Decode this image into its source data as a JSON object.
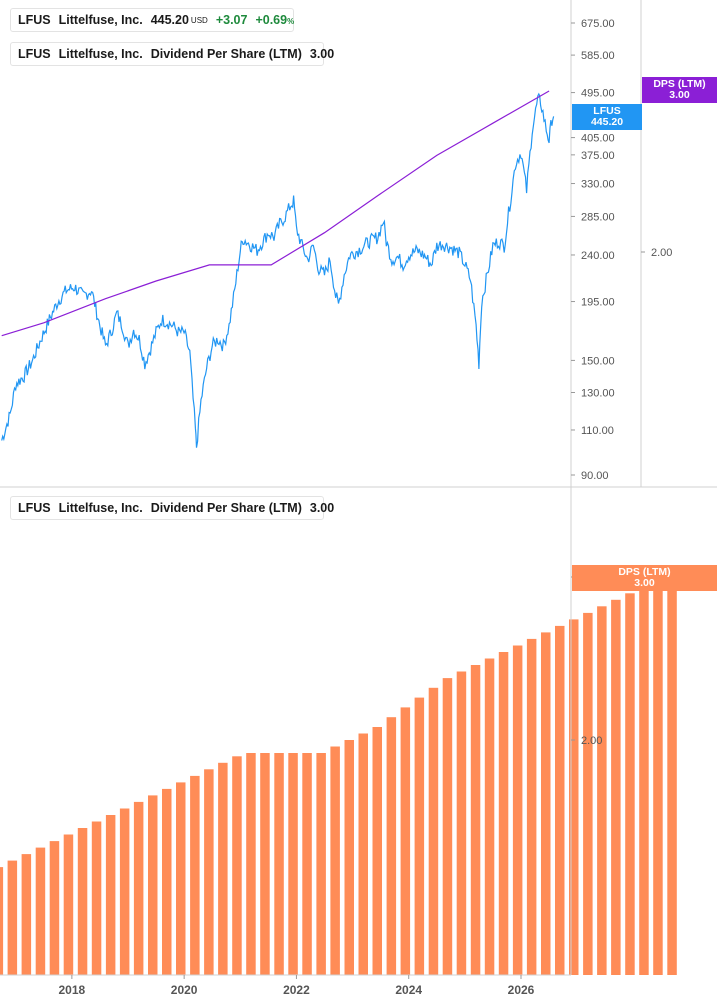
{
  "legend_price": {
    "ticker": "LFUS",
    "name": "Littelfuse, Inc.",
    "price": "445.20",
    "currency": "USD",
    "change": "+3.07",
    "change_pct": "+0.69",
    "pct_sign": "%",
    "color": "#2196f3"
  },
  "legend_dps_top": {
    "ticker": "LFUS",
    "name": "Littelfuse, Inc.",
    "metric": "Dividend Per Share (LTM)",
    "value": "3.00",
    "color": "#8b1fd6"
  },
  "legend_dps_bottom": {
    "ticker": "LFUS",
    "name": "Littelfuse, Inc.",
    "metric": "Dividend Per Share (LTM)",
    "value": "3.00",
    "color": "#ff8c57"
  },
  "tags": {
    "price_tag": {
      "label": "LFUS",
      "value": "445.20"
    },
    "dps_top_tag": {
      "label": "DPS (LTM)",
      "value": "3.00"
    },
    "dps_bottom_tag": {
      "label": "DPS (LTM)",
      "value": "3.00"
    }
  },
  "chart_data": [
    {
      "type": "line",
      "scale": "log",
      "y_ticks": [
        "675.00",
        "585.00",
        "495.00",
        "405.00",
        "375.00",
        "330.00",
        "285.00",
        "240.00",
        "195.00",
        "150.00",
        "130.00",
        "110.00",
        "90.00"
      ],
      "y2_ticks": [
        "2.00"
      ],
      "series": [
        {
          "name": "LFUS",
          "color": "#2196f3",
          "points": [
            [
              2016.75,
              105
            ],
            [
              2016.9,
              118
            ],
            [
              2017.0,
              135
            ],
            [
              2017.15,
              140
            ],
            [
              2017.3,
              150
            ],
            [
              2017.45,
              165
            ],
            [
              2017.6,
              180
            ],
            [
              2017.75,
              195
            ],
            [
              2017.9,
              205
            ],
            [
              2018.05,
              208
            ],
            [
              2018.2,
              200
            ],
            [
              2018.35,
              205
            ],
            [
              2018.5,
              175
            ],
            [
              2018.6,
              160
            ],
            [
              2018.7,
              170
            ],
            [
              2018.8,
              185
            ],
            [
              2018.9,
              175
            ],
            [
              2019.0,
              160
            ],
            [
              2019.1,
              172
            ],
            [
              2019.2,
              165
            ],
            [
              2019.3,
              148
            ],
            [
              2019.4,
              158
            ],
            [
              2019.5,
              170
            ],
            [
              2019.6,
              180
            ],
            [
              2019.7,
              178
            ],
            [
              2019.8,
              175
            ],
            [
              2019.9,
              170
            ],
            [
              2020.0,
              170
            ],
            [
              2020.1,
              155
            ],
            [
              2020.2,
              110
            ],
            [
              2020.22,
              102
            ],
            [
              2020.3,
              125
            ],
            [
              2020.4,
              145
            ],
            [
              2020.5,
              160
            ],
            [
              2020.6,
              165
            ],
            [
              2020.7,
              160
            ],
            [
              2020.8,
              175
            ],
            [
              2020.9,
              205
            ],
            [
              2021.0,
              245
            ],
            [
              2021.05,
              258
            ],
            [
              2021.2,
              250
            ],
            [
              2021.3,
              245
            ],
            [
              2021.4,
              255
            ],
            [
              2021.5,
              265
            ],
            [
              2021.6,
              260
            ],
            [
              2021.7,
              275
            ],
            [
              2021.8,
              285
            ],
            [
              2021.9,
              300
            ],
            [
              2021.95,
              305
            ],
            [
              2022.0,
              270
            ],
            [
              2022.1,
              250
            ],
            [
              2022.2,
              235
            ],
            [
              2022.3,
              250
            ],
            [
              2022.4,
              225
            ],
            [
              2022.5,
              220
            ],
            [
              2022.6,
              235
            ],
            [
              2022.7,
              200
            ],
            [
              2022.75,
              192
            ],
            [
              2022.85,
              220
            ],
            [
              2022.95,
              240
            ],
            [
              2023.1,
              245
            ],
            [
              2023.3,
              255
            ],
            [
              2023.45,
              260
            ],
            [
              2023.55,
              280
            ],
            [
              2023.6,
              255
            ],
            [
              2023.7,
              235
            ],
            [
              2023.8,
              238
            ],
            [
              2023.9,
              230
            ],
            [
              2024.0,
              240
            ],
            [
              2024.15,
              245
            ],
            [
              2024.3,
              238
            ],
            [
              2024.4,
              230
            ],
            [
              2024.5,
              250
            ],
            [
              2024.6,
              252
            ],
            [
              2024.75,
              248
            ],
            [
              2024.9,
              242
            ],
            [
              2025.0,
              230
            ],
            [
              2025.1,
              215
            ],
            [
              2025.2,
              175
            ],
            [
              2025.25,
              148
            ],
            [
              2025.3,
              195
            ],
            [
              2025.4,
              220
            ],
            [
              2025.5,
              250
            ],
            [
              2025.6,
              255
            ],
            [
              2025.7,
              250
            ],
            [
              2025.8,
              300
            ],
            [
              2025.9,
              360
            ],
            [
              2026.0,
              380
            ],
            [
              2026.1,
              320
            ],
            [
              2026.2,
              420
            ],
            [
              2026.3,
              480
            ],
            [
              2026.35,
              475
            ],
            [
              2026.45,
              420
            ],
            [
              2026.5,
              400
            ],
            [
              2026.55,
              440
            ],
            [
              2026.58,
              445.2
            ]
          ]
        },
        {
          "name": "DPS (LTM)",
          "color": "#8b1fd6",
          "points": [
            [
              2016.75,
              1.48
            ],
            [
              2017.5,
              1.56
            ],
            [
              2018.6,
              1.71
            ],
            [
              2019.5,
              1.82
            ],
            [
              2020.45,
              1.92
            ],
            [
              2021.05,
              1.92
            ],
            [
              2021.55,
              1.92
            ],
            [
              2022.5,
              2.12
            ],
            [
              2023.45,
              2.35
            ],
            [
              2024.5,
              2.6
            ],
            [
              2025.5,
              2.8
            ],
            [
              2026.5,
              3.0
            ]
          ]
        }
      ]
    },
    {
      "type": "bar",
      "x_ticks": [
        "2018",
        "2020",
        "2022",
        "2024",
        "2026"
      ],
      "y_ticks": [
        "3.00",
        "2.00"
      ],
      "series": [
        {
          "name": "DPS (LTM)",
          "color": "#ff8c57",
          "values": [
            1.22,
            1.26,
            1.3,
            1.34,
            1.38,
            1.42,
            1.46,
            1.5,
            1.54,
            1.58,
            1.62,
            1.66,
            1.7,
            1.74,
            1.78,
            1.82,
            1.86,
            1.9,
            1.92,
            1.92,
            1.92,
            1.92,
            1.92,
            1.92,
            1.96,
            2.0,
            2.04,
            2.08,
            2.14,
            2.2,
            2.26,
            2.32,
            2.38,
            2.42,
            2.46,
            2.5,
            2.54,
            2.58,
            2.62,
            2.66,
            2.7,
            2.74,
            2.78,
            2.82,
            2.86,
            2.9,
            2.94,
            2.97,
            3.0
          ]
        }
      ]
    }
  ]
}
